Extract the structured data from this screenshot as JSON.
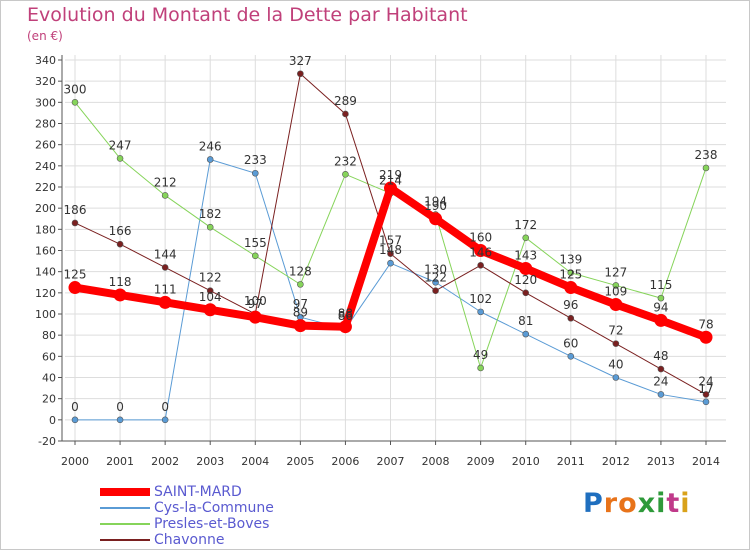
{
  "title": "Evolution du Montant de la Dette par Habitant",
  "subtitle": "(en €)",
  "logo": {
    "text": "Proxiti",
    "letters": [
      {
        "ch": "P",
        "color": "#1f6fbf"
      },
      {
        "ch": "r",
        "color": "#e8731a"
      },
      {
        "ch": "o",
        "color": "#e8731a"
      },
      {
        "ch": "x",
        "color": "#2e9a3a"
      },
      {
        "ch": "i",
        "color": "#2e9a3a"
      },
      {
        "ch": "t",
        "color": "#c03a8a"
      },
      {
        "ch": "i",
        "color": "#d9a21a"
      }
    ]
  },
  "chart_data": {
    "type": "line",
    "title": "Evolution du Montant de la Dette par Habitant",
    "subtitle": "(en €)",
    "x": [
      "2000",
      "2001",
      "2002",
      "2003",
      "2004",
      "2005",
      "2006",
      "2007",
      "2008",
      "2009",
      "2010",
      "2011",
      "2012",
      "2013",
      "2014"
    ],
    "ylim": [
      -20,
      340
    ],
    "yticks": [
      -20,
      0,
      20,
      40,
      60,
      80,
      100,
      120,
      140,
      160,
      180,
      200,
      220,
      240,
      260,
      280,
      300,
      320,
      340
    ],
    "grid": true,
    "legend_position": "bottom-left",
    "series": [
      {
        "name": "SAINT-MARD",
        "color": "#ff0000",
        "width": 8,
        "marker": 6,
        "values": [
          125,
          118,
          111,
          104,
          97,
          89,
          88,
          219,
          190,
          160,
          143,
          125,
          109,
          94,
          78
        ],
        "labels": [
          "125",
          "118",
          "111",
          "104",
          "97",
          "89",
          "88",
          "219",
          "190",
          "160",
          "143",
          "125",
          "109",
          "94",
          "78"
        ]
      },
      {
        "name": "Cys-la-Commune",
        "color": "#5a9bd5",
        "width": 1,
        "marker": 3,
        "values": [
          0,
          0,
          0,
          246,
          233,
          97,
          86,
          148,
          130,
          102,
          81,
          60,
          40,
          24,
          17
        ],
        "labels": [
          "0",
          "0",
          "0",
          "246",
          "233",
          "97",
          "86",
          "148",
          "130",
          "102",
          "81",
          "60",
          "40",
          "24",
          "17"
        ]
      },
      {
        "name": "Presles-et-Boves",
        "color": "#86d45a",
        "width": 1,
        "marker": 3,
        "values": [
          300,
          247,
          212,
          182,
          155,
          128,
          232,
          214,
          194,
          49,
          172,
          139,
          127,
          115,
          238
        ],
        "labels": [
          "300",
          "247",
          "212",
          "182",
          "155",
          "128",
          "232",
          "214",
          "194",
          "49",
          "172",
          "139",
          "127",
          "115",
          "238"
        ]
      },
      {
        "name": "Chavonne",
        "color": "#7a2020",
        "width": 1,
        "marker": 3,
        "values": [
          186,
          166,
          144,
          122,
          100,
          327,
          289,
          157,
          122,
          146,
          120,
          96,
          72,
          48,
          24
        ],
        "labels": [
          "186",
          "166",
          "144",
          "122",
          "100",
          "327",
          "289",
          "157",
          "122",
          "146",
          "120",
          "96",
          "72",
          "48",
          "24"
        ]
      }
    ]
  }
}
